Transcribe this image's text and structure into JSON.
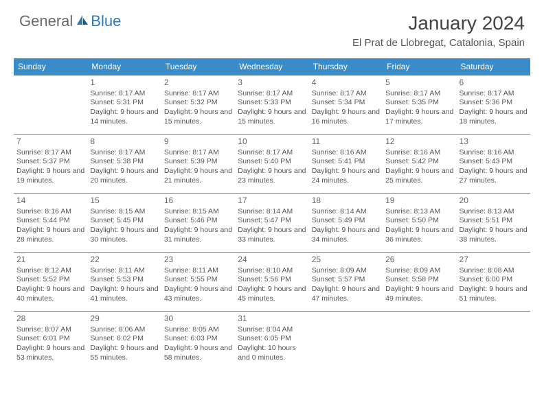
{
  "logo": {
    "text1": "General",
    "text2": "Blue"
  },
  "title": "January 2024",
  "location": "El Prat de Llobregat, Catalonia, Spain",
  "colors": {
    "header_bg": "#3a8cc9",
    "header_text": "#ffffff",
    "border": "#3a8cc9",
    "body_text": "#555555",
    "logo_gray": "#6a6a6a",
    "logo_blue": "#2a7bbf"
  },
  "dayHeaders": [
    "Sunday",
    "Monday",
    "Tuesday",
    "Wednesday",
    "Thursday",
    "Friday",
    "Saturday"
  ],
  "weeks": [
    [
      null,
      {
        "n": "1",
        "sr": "Sunrise: 8:17 AM",
        "ss": "Sunset: 5:31 PM",
        "dl": "Daylight: 9 hours and 14 minutes."
      },
      {
        "n": "2",
        "sr": "Sunrise: 8:17 AM",
        "ss": "Sunset: 5:32 PM",
        "dl": "Daylight: 9 hours and 15 minutes."
      },
      {
        "n": "3",
        "sr": "Sunrise: 8:17 AM",
        "ss": "Sunset: 5:33 PM",
        "dl": "Daylight: 9 hours and 15 minutes."
      },
      {
        "n": "4",
        "sr": "Sunrise: 8:17 AM",
        "ss": "Sunset: 5:34 PM",
        "dl": "Daylight: 9 hours and 16 minutes."
      },
      {
        "n": "5",
        "sr": "Sunrise: 8:17 AM",
        "ss": "Sunset: 5:35 PM",
        "dl": "Daylight: 9 hours and 17 minutes."
      },
      {
        "n": "6",
        "sr": "Sunrise: 8:17 AM",
        "ss": "Sunset: 5:36 PM",
        "dl": "Daylight: 9 hours and 18 minutes."
      }
    ],
    [
      {
        "n": "7",
        "sr": "Sunrise: 8:17 AM",
        "ss": "Sunset: 5:37 PM",
        "dl": "Daylight: 9 hours and 19 minutes."
      },
      {
        "n": "8",
        "sr": "Sunrise: 8:17 AM",
        "ss": "Sunset: 5:38 PM",
        "dl": "Daylight: 9 hours and 20 minutes."
      },
      {
        "n": "9",
        "sr": "Sunrise: 8:17 AM",
        "ss": "Sunset: 5:39 PM",
        "dl": "Daylight: 9 hours and 21 minutes."
      },
      {
        "n": "10",
        "sr": "Sunrise: 8:17 AM",
        "ss": "Sunset: 5:40 PM",
        "dl": "Daylight: 9 hours and 23 minutes."
      },
      {
        "n": "11",
        "sr": "Sunrise: 8:16 AM",
        "ss": "Sunset: 5:41 PM",
        "dl": "Daylight: 9 hours and 24 minutes."
      },
      {
        "n": "12",
        "sr": "Sunrise: 8:16 AM",
        "ss": "Sunset: 5:42 PM",
        "dl": "Daylight: 9 hours and 25 minutes."
      },
      {
        "n": "13",
        "sr": "Sunrise: 8:16 AM",
        "ss": "Sunset: 5:43 PM",
        "dl": "Daylight: 9 hours and 27 minutes."
      }
    ],
    [
      {
        "n": "14",
        "sr": "Sunrise: 8:16 AM",
        "ss": "Sunset: 5:44 PM",
        "dl": "Daylight: 9 hours and 28 minutes."
      },
      {
        "n": "15",
        "sr": "Sunrise: 8:15 AM",
        "ss": "Sunset: 5:45 PM",
        "dl": "Daylight: 9 hours and 30 minutes."
      },
      {
        "n": "16",
        "sr": "Sunrise: 8:15 AM",
        "ss": "Sunset: 5:46 PM",
        "dl": "Daylight: 9 hours and 31 minutes."
      },
      {
        "n": "17",
        "sr": "Sunrise: 8:14 AM",
        "ss": "Sunset: 5:47 PM",
        "dl": "Daylight: 9 hours and 33 minutes."
      },
      {
        "n": "18",
        "sr": "Sunrise: 8:14 AM",
        "ss": "Sunset: 5:49 PM",
        "dl": "Daylight: 9 hours and 34 minutes."
      },
      {
        "n": "19",
        "sr": "Sunrise: 8:13 AM",
        "ss": "Sunset: 5:50 PM",
        "dl": "Daylight: 9 hours and 36 minutes."
      },
      {
        "n": "20",
        "sr": "Sunrise: 8:13 AM",
        "ss": "Sunset: 5:51 PM",
        "dl": "Daylight: 9 hours and 38 minutes."
      }
    ],
    [
      {
        "n": "21",
        "sr": "Sunrise: 8:12 AM",
        "ss": "Sunset: 5:52 PM",
        "dl": "Daylight: 9 hours and 40 minutes."
      },
      {
        "n": "22",
        "sr": "Sunrise: 8:11 AM",
        "ss": "Sunset: 5:53 PM",
        "dl": "Daylight: 9 hours and 41 minutes."
      },
      {
        "n": "23",
        "sr": "Sunrise: 8:11 AM",
        "ss": "Sunset: 5:55 PM",
        "dl": "Daylight: 9 hours and 43 minutes."
      },
      {
        "n": "24",
        "sr": "Sunrise: 8:10 AM",
        "ss": "Sunset: 5:56 PM",
        "dl": "Daylight: 9 hours and 45 minutes."
      },
      {
        "n": "25",
        "sr": "Sunrise: 8:09 AM",
        "ss": "Sunset: 5:57 PM",
        "dl": "Daylight: 9 hours and 47 minutes."
      },
      {
        "n": "26",
        "sr": "Sunrise: 8:09 AM",
        "ss": "Sunset: 5:58 PM",
        "dl": "Daylight: 9 hours and 49 minutes."
      },
      {
        "n": "27",
        "sr": "Sunrise: 8:08 AM",
        "ss": "Sunset: 6:00 PM",
        "dl": "Daylight: 9 hours and 51 minutes."
      }
    ],
    [
      {
        "n": "28",
        "sr": "Sunrise: 8:07 AM",
        "ss": "Sunset: 6:01 PM",
        "dl": "Daylight: 9 hours and 53 minutes."
      },
      {
        "n": "29",
        "sr": "Sunrise: 8:06 AM",
        "ss": "Sunset: 6:02 PM",
        "dl": "Daylight: 9 hours and 55 minutes."
      },
      {
        "n": "30",
        "sr": "Sunrise: 8:05 AM",
        "ss": "Sunset: 6:03 PM",
        "dl": "Daylight: 9 hours and 58 minutes."
      },
      {
        "n": "31",
        "sr": "Sunrise: 8:04 AM",
        "ss": "Sunset: 6:05 PM",
        "dl": "Daylight: 10 hours and 0 minutes."
      },
      null,
      null,
      null
    ]
  ]
}
